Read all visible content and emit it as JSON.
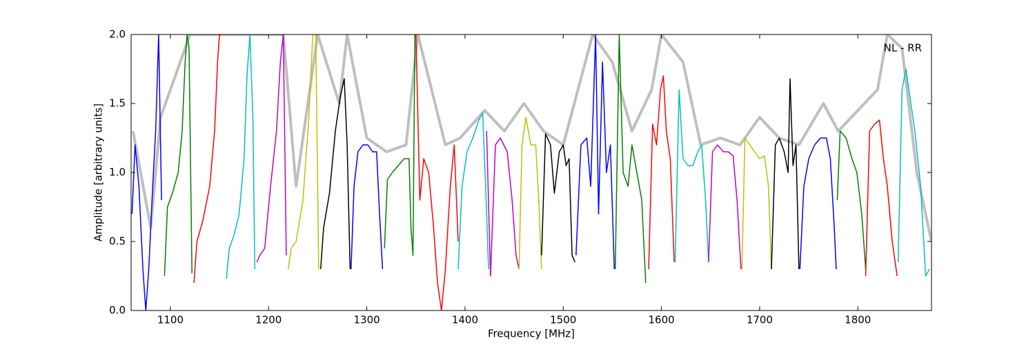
{
  "chart_data": {
    "type": "line",
    "annotation": "NL - RR",
    "xlabel": "Frequency [MHz]",
    "ylabel": "Amplitude [arbitrary units]",
    "xlim": [
      1060,
      1875
    ],
    "ylim": [
      0,
      2
    ],
    "xticks": [
      1100,
      1200,
      1300,
      1400,
      1500,
      1600,
      1700,
      1800
    ],
    "yticks": [
      {
        "value": 0,
        "label": "0.0"
      },
      {
        "value": 0.5,
        "label": "0.5"
      },
      {
        "value": 1,
        "label": "1.0"
      },
      {
        "value": 1.5,
        "label": "1.5"
      },
      {
        "value": 2,
        "label": "2.0"
      }
    ],
    "series": [
      {
        "color": "#bfbfbf",
        "x": [
          1062,
          1080,
          1090,
          1120,
          1150,
          1180,
          1215,
          1228,
          1250,
          1272,
          1280,
          1300,
          1320,
          1340,
          1352,
          1380,
          1395,
          1420,
          1440,
          1460,
          1480,
          1500,
          1530,
          1550,
          1570,
          1590,
          1600,
          1622,
          1640,
          1660,
          1680,
          1700,
          1720,
          1740,
          1765,
          1780,
          1800,
          1820,
          1830,
          1845,
          1860,
          1875
        ],
        "values": [
          1.3,
          0.6,
          1.4,
          2.0,
          2.0,
          2.0,
          2.0,
          0.9,
          2.0,
          1.5,
          2.0,
          1.25,
          1.15,
          1.2,
          2.0,
          1.2,
          1.25,
          1.45,
          1.3,
          1.5,
          1.3,
          1.2,
          2.0,
          1.8,
          1.3,
          1.6,
          2.0,
          1.8,
          1.2,
          1.25,
          1.2,
          1.4,
          1.25,
          1.2,
          1.5,
          1.3,
          1.45,
          1.6,
          2.0,
          1.9,
          1.0,
          0.5
        ]
      },
      {
        "color": "#0000ff",
        "x": [
          1061,
          1064,
          1068,
          1072,
          1075,
          1078,
          1082,
          1085,
          1088,
          1091
        ],
        "values": [
          0.7,
          1.2,
          0.9,
          0.3,
          0.0,
          0.3,
          0.9,
          1.3,
          2.0,
          0.8
        ]
      },
      {
        "color": "#008000",
        "x": [
          1094,
          1097,
          1102,
          1108,
          1112,
          1115,
          1117,
          1119,
          1122
        ],
        "values": [
          0.25,
          0.75,
          0.85,
          1.0,
          1.3,
          1.8,
          2.0,
          1.9,
          0.27
        ]
      },
      {
        "color": "#ff0000",
        "x": [
          1124,
          1127,
          1133,
          1140,
          1145,
          1148,
          1150,
          1152
        ],
        "values": [
          0.2,
          0.5,
          0.65,
          0.9,
          1.3,
          1.8,
          2.0,
          2.0
        ]
      },
      {
        "color": "#00bfbf",
        "x": [
          1157,
          1160,
          1165,
          1170,
          1175,
          1178,
          1181,
          1184,
          1186
        ],
        "values": [
          0.23,
          0.45,
          0.55,
          0.7,
          1.1,
          1.7,
          2.0,
          1.4,
          0.3
        ]
      },
      {
        "color": "#bf00bf",
        "x": [
          1188,
          1191,
          1196,
          1202,
          1208,
          1212,
          1215,
          1218
        ],
        "values": [
          0.35,
          0.4,
          0.45,
          0.9,
          1.3,
          1.8,
          2.0,
          0.4
        ]
      },
      {
        "color": "#bfbf00",
        "x": [
          1220,
          1223,
          1228,
          1235,
          1241,
          1245,
          1248,
          1251
        ],
        "values": [
          0.3,
          0.45,
          0.5,
          0.8,
          1.4,
          2.0,
          2.0,
          0.3
        ]
      },
      {
        "color": "#000000",
        "x": [
          1253,
          1256,
          1262,
          1268,
          1273,
          1277,
          1280,
          1283
        ],
        "values": [
          0.3,
          0.6,
          0.85,
          1.3,
          1.55,
          1.68,
          1.2,
          0.3
        ]
      },
      {
        "color": "#0000ff",
        "x": [
          1284,
          1287,
          1291,
          1296,
          1301,
          1306,
          1310,
          1313,
          1316
        ],
        "values": [
          0.3,
          0.9,
          1.15,
          1.2,
          1.2,
          1.15,
          1.15,
          0.7,
          0.3
        ]
      },
      {
        "color": "#008000",
        "x": [
          1318,
          1321,
          1326,
          1332,
          1338,
          1343,
          1345,
          1347,
          1349
        ],
        "values": [
          0.45,
          0.95,
          1.0,
          1.05,
          1.1,
          1.1,
          0.6,
          0.4,
          2.0
        ]
      },
      {
        "color": "#ff0000",
        "x": [
          1350,
          1354,
          1358,
          1363,
          1368,
          1372,
          1376,
          1380,
          1385,
          1389,
          1393
        ],
        "values": [
          2.0,
          0.8,
          1.1,
          1.0,
          0.6,
          0.2,
          0.0,
          0.3,
          0.9,
          1.2,
          0.5
        ]
      },
      {
        "color": "#00bfbf",
        "x": [
          1393,
          1397,
          1402,
          1408,
          1414,
          1418,
          1421,
          1424
        ],
        "values": [
          0.3,
          0.9,
          1.15,
          1.25,
          1.38,
          1.43,
          0.9,
          0.3
        ]
      },
      {
        "color": "#bf00bf",
        "x": [
          1422,
          1426,
          1431,
          1436,
          1443,
          1448,
          1452,
          1455
        ],
        "values": [
          1.3,
          0.25,
          1.2,
          1.25,
          1.15,
          0.8,
          0.4,
          0.3
        ]
      },
      {
        "color": "#bfbf00",
        "x": [
          1455,
          1458,
          1462,
          1467,
          1472,
          1475,
          1478
        ],
        "values": [
          0.3,
          1.2,
          1.4,
          1.2,
          1.2,
          0.8,
          0.3
        ]
      },
      {
        "color": "#000000",
        "x": [
          1478,
          1482,
          1487,
          1491,
          1496,
          1500,
          1503,
          1506,
          1509,
          1512
        ],
        "values": [
          0.4,
          1.28,
          1.2,
          0.85,
          1.15,
          1.2,
          1.05,
          1.1,
          0.4,
          0.35
        ]
      },
      {
        "color": "#0000ff",
        "x": [
          1513,
          1518,
          1524,
          1528,
          1533,
          1536,
          1540,
          1544,
          1548,
          1552
        ],
        "values": [
          0.4,
          1.2,
          1.25,
          0.9,
          2.0,
          0.7,
          1.8,
          1.0,
          1.2,
          0.3
        ]
      },
      {
        "color": "#008000",
        "x": [
          1553,
          1557,
          1561,
          1566,
          1570,
          1575,
          1580,
          1584
        ],
        "values": [
          0.3,
          2.0,
          1.0,
          0.9,
          1.2,
          1.0,
          0.8,
          0.2
        ]
      },
      {
        "color": "#ff0000",
        "x": [
          1587,
          1591,
          1595,
          1599,
          1602,
          1605,
          1609,
          1613
        ],
        "values": [
          0.3,
          1.35,
          1.2,
          1.6,
          1.7,
          1.3,
          1.1,
          0.35
        ]
      },
      {
        "color": "#00bfbf",
        "x": [
          1614,
          1618,
          1622,
          1627,
          1632,
          1637,
          1641,
          1645,
          1648
        ],
        "values": [
          0.35,
          1.6,
          1.1,
          1.05,
          1.05,
          1.15,
          1.2,
          0.8,
          0.35
        ]
      },
      {
        "color": "#bf00bf",
        "x": [
          1648,
          1652,
          1657,
          1663,
          1668,
          1673,
          1677,
          1681
        ],
        "values": [
          0.35,
          1.15,
          1.2,
          1.15,
          1.15,
          1.12,
          0.8,
          0.3
        ]
      },
      {
        "color": "#bfbf00",
        "x": [
          1682,
          1685,
          1690,
          1695,
          1700,
          1705,
          1709,
          1712
        ],
        "values": [
          0.3,
          1.25,
          1.2,
          1.15,
          1.1,
          1.12,
          0.9,
          0.3
        ]
      },
      {
        "color": "#000000",
        "x": [
          1712,
          1716,
          1720,
          1725,
          1729,
          1731,
          1734,
          1737,
          1740
        ],
        "values": [
          0.3,
          1.2,
          1.25,
          1.15,
          1.0,
          1.68,
          1.05,
          1.2,
          0.3
        ]
      },
      {
        "color": "#0000ff",
        "x": [
          1741,
          1745,
          1750,
          1756,
          1762,
          1768,
          1772,
          1776,
          1778
        ],
        "values": [
          0.3,
          0.9,
          1.1,
          1.2,
          1.25,
          1.25,
          1.1,
          0.6,
          0.3
        ]
      },
      {
        "color": "#008000",
        "x": [
          1779,
          1782,
          1788,
          1794,
          1799,
          1804,
          1808
        ],
        "values": [
          0.8,
          1.3,
          1.25,
          1.1,
          1.0,
          0.7,
          0.3
        ]
      },
      {
        "color": "#ff0000",
        "x": [
          1808,
          1812,
          1817,
          1822,
          1826,
          1830,
          1835,
          1840
        ],
        "values": [
          0.25,
          1.3,
          1.35,
          1.38,
          1.1,
          0.9,
          0.5,
          0.25
        ]
      },
      {
        "color": "#00bfbf",
        "x": [
          1841,
          1845,
          1849,
          1853,
          1858,
          1864,
          1869,
          1873
        ],
        "values": [
          0.35,
          1.6,
          1.75,
          1.55,
          1.3,
          0.9,
          0.25,
          0.3
        ]
      }
    ]
  }
}
